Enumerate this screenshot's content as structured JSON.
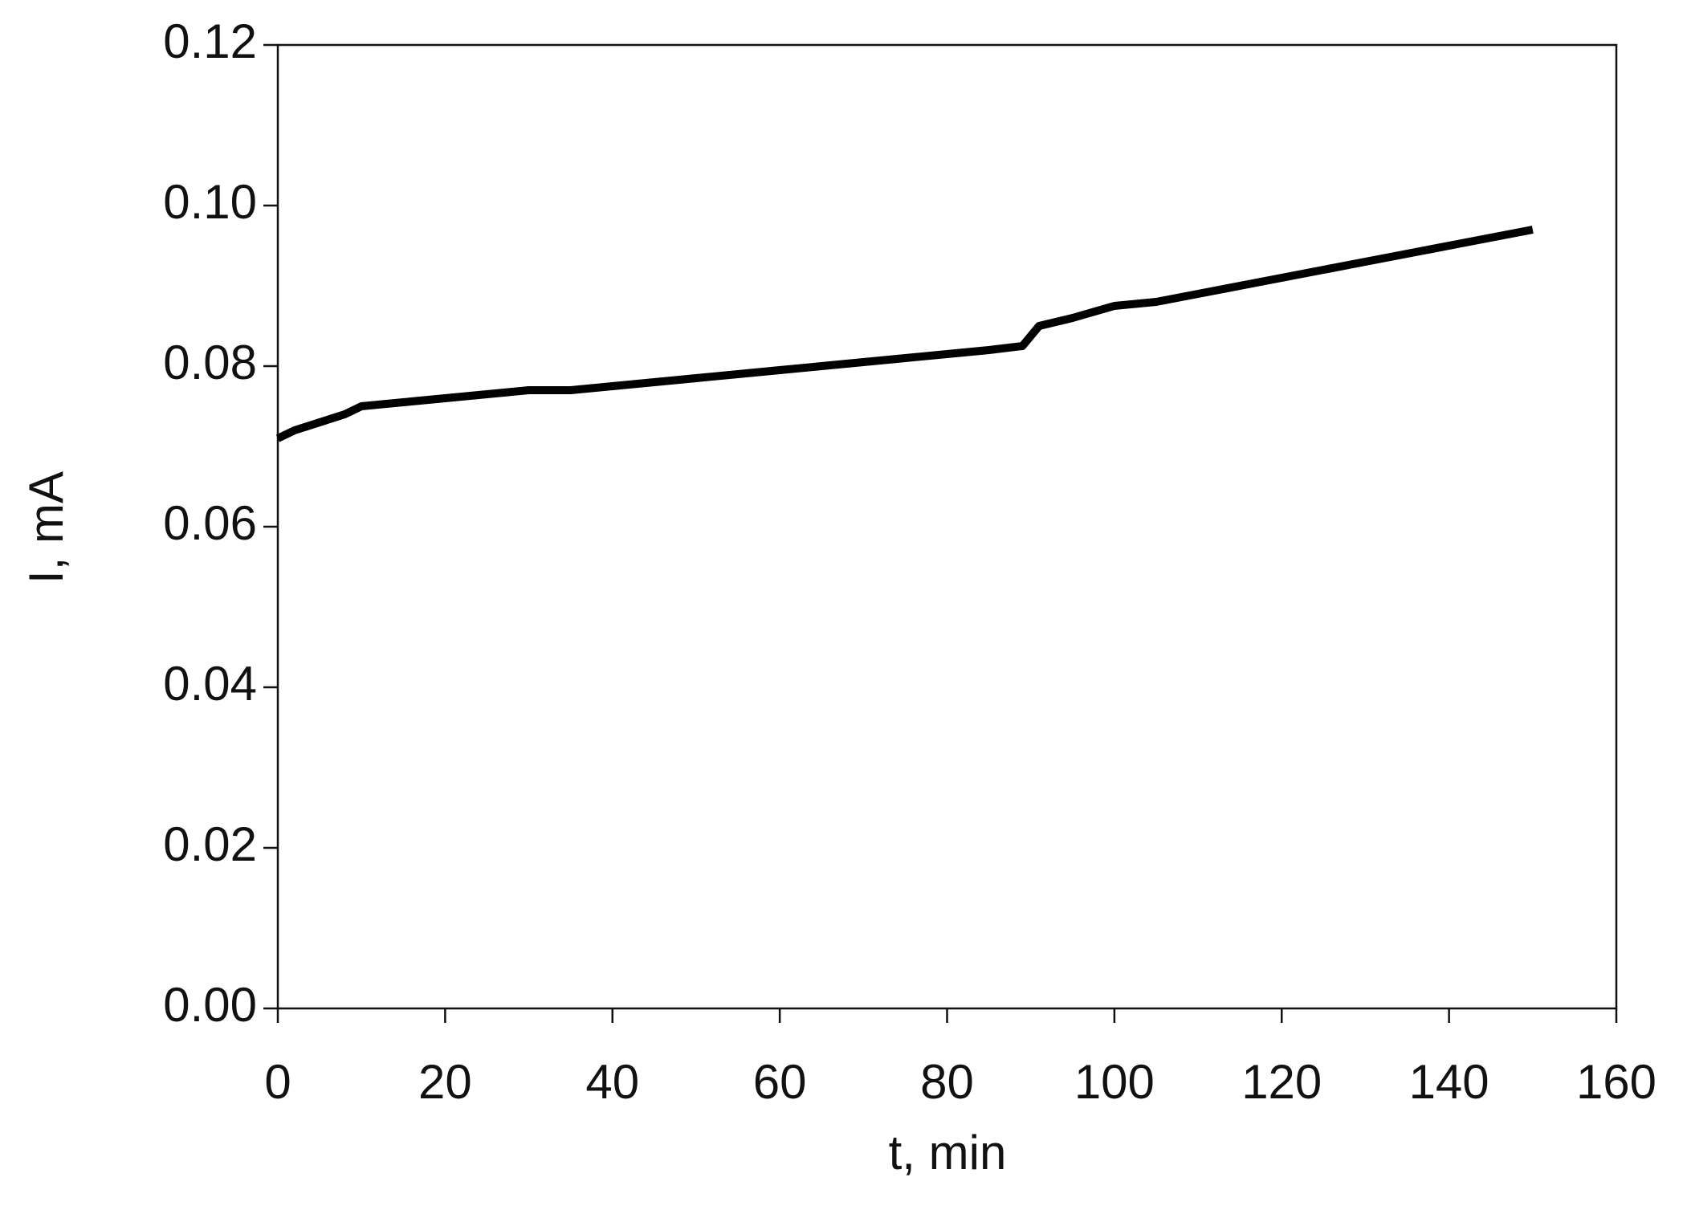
{
  "chart_data": {
    "type": "line",
    "x_label": "t, min",
    "y_label": "I, mA",
    "x": [
      0,
      2,
      5,
      8,
      10,
      15,
      20,
      25,
      30,
      35,
      40,
      45,
      50,
      55,
      60,
      65,
      70,
      75,
      80,
      85,
      89,
      91,
      95,
      100,
      105,
      110,
      115,
      120,
      125,
      130,
      135,
      140,
      145,
      150
    ],
    "values": [
      0.071,
      0.072,
      0.073,
      0.074,
      0.075,
      0.0755,
      0.076,
      0.0765,
      0.077,
      0.077,
      0.0775,
      0.078,
      0.0785,
      0.079,
      0.0795,
      0.08,
      0.0805,
      0.081,
      0.0815,
      0.082,
      0.0825,
      0.085,
      0.086,
      0.0875,
      0.088,
      0.089,
      0.09,
      0.091,
      0.092,
      0.093,
      0.094,
      0.095,
      0.096,
      0.097
    ],
    "color": "#000000",
    "xlim": [
      0,
      160
    ],
    "xticks": [
      0,
      20,
      40,
      60,
      80,
      100,
      120,
      140,
      160
    ],
    "ylim": [
      0,
      0.12
    ],
    "yticks": [
      {
        "value": 0,
        "label": "0.00"
      },
      0.02,
      0.04,
      0.06,
      0.08,
      {
        "value": 0.1,
        "label": "0.10"
      },
      0.12
    ],
    "grid": false
  }
}
